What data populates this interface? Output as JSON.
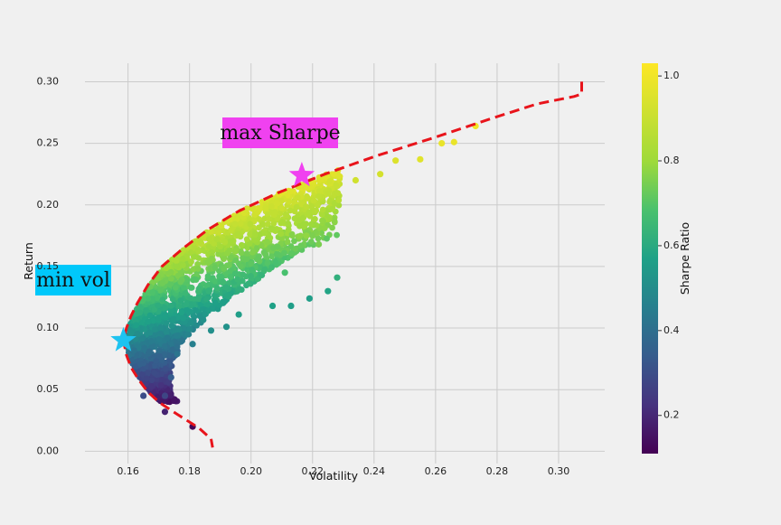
{
  "chart_data": {
    "type": "scatter",
    "title": "",
    "xlabel": "Volatility",
    "ylabel": "Return",
    "colorbar_label": "Sharpe Ratio",
    "xlim": [
      0.146,
      0.315
    ],
    "ylim": [
      -0.01,
      0.315
    ],
    "xticks": [
      "0.16",
      "0.18",
      "0.20",
      "0.22",
      "0.24",
      "0.26",
      "0.28",
      "0.30"
    ],
    "xtick_values": [
      0.16,
      0.18,
      0.2,
      0.22,
      0.24,
      0.26,
      0.28,
      0.3
    ],
    "yticks": [
      "0.00",
      "0.05",
      "0.10",
      "0.15",
      "0.20",
      "0.25",
      "0.30"
    ],
    "ytick_values": [
      0.0,
      0.05,
      0.1,
      0.15,
      0.2,
      0.25,
      0.3
    ],
    "colorbar_ticks": [
      "0.2",
      "0.4",
      "0.6",
      "0.8",
      "1.0"
    ],
    "colorbar_tick_values": [
      0.2,
      0.4,
      0.6,
      0.8,
      1.0
    ],
    "colorbar_range": [
      0.11,
      1.03
    ],
    "colormap": "viridis",
    "grid": true,
    "frontier": {
      "color": "#e8141b",
      "style": "dashed",
      "upper": [
        [
          0.1585,
          0.09
        ],
        [
          0.1595,
          0.1
        ],
        [
          0.161,
          0.11
        ],
        [
          0.163,
          0.12
        ],
        [
          0.1665,
          0.135
        ],
        [
          0.171,
          0.15
        ],
        [
          0.178,
          0.165
        ],
        [
          0.186,
          0.18
        ],
        [
          0.196,
          0.195
        ],
        [
          0.209,
          0.21
        ],
        [
          0.224,
          0.225
        ],
        [
          0.241,
          0.24
        ],
        [
          0.26,
          0.255
        ],
        [
          0.278,
          0.27
        ],
        [
          0.293,
          0.282
        ],
        [
          0.305,
          0.288
        ],
        [
          0.3075,
          0.29
        ],
        [
          0.3075,
          0.3
        ]
      ],
      "lower": [
        [
          0.1585,
          0.09
        ],
        [
          0.1595,
          0.078
        ],
        [
          0.161,
          0.068
        ],
        [
          0.1635,
          0.058
        ],
        [
          0.1665,
          0.048
        ],
        [
          0.1705,
          0.039
        ],
        [
          0.176,
          0.03
        ],
        [
          0.183,
          0.019
        ],
        [
          0.187,
          0.01
        ],
        [
          0.1875,
          0.003
        ]
      ]
    },
    "scatter_samples": [
      {
        "x": 0.181,
        "y": 0.02,
        "sharpe": 0.12
      },
      {
        "x": 0.172,
        "y": 0.032,
        "sharpe": 0.19
      },
      {
        "x": 0.165,
        "y": 0.045,
        "sharpe": 0.3
      },
      {
        "x": 0.255,
        "y": 0.237,
        "sharpe": 0.96
      },
      {
        "x": 0.262,
        "y": 0.25,
        "sharpe": 0.98
      },
      {
        "x": 0.266,
        "y": 0.251,
        "sharpe": 0.98
      },
      {
        "x": 0.273,
        "y": 0.264,
        "sharpe": 1.0
      },
      {
        "x": 0.228,
        "y": 0.141,
        "sharpe": 0.62
      },
      {
        "x": 0.225,
        "y": 0.13,
        "sharpe": 0.58
      },
      {
        "x": 0.219,
        "y": 0.124,
        "sharpe": 0.56
      },
      {
        "x": 0.213,
        "y": 0.118,
        "sharpe": 0.56
      },
      {
        "x": 0.207,
        "y": 0.118,
        "sharpe": 0.57
      },
      {
        "x": 0.196,
        "y": 0.111,
        "sharpe": 0.56
      },
      {
        "x": 0.192,
        "y": 0.101,
        "sharpe": 0.52
      },
      {
        "x": 0.187,
        "y": 0.098,
        "sharpe": 0.51
      },
      {
        "x": 0.181,
        "y": 0.087,
        "sharpe": 0.46
      },
      {
        "x": 0.176,
        "y": 0.079,
        "sharpe": 0.42
      },
      {
        "x": 0.172,
        "y": 0.045,
        "sharpe": 0.28
      },
      {
        "x": 0.174,
        "y": 0.06,
        "sharpe": 0.34
      },
      {
        "x": 0.242,
        "y": 0.225,
        "sharpe": 0.93
      },
      {
        "x": 0.234,
        "y": 0.22,
        "sharpe": 0.92
      },
      {
        "x": 0.247,
        "y": 0.236,
        "sharpe": 0.95
      },
      {
        "x": 0.218,
        "y": 0.175,
        "sharpe": 0.78
      },
      {
        "x": 0.222,
        "y": 0.168,
        "sharpe": 0.75
      },
      {
        "x": 0.211,
        "y": 0.145,
        "sharpe": 0.68
      }
    ],
    "markers": [
      {
        "label": "max Sharpe",
        "x": 0.2165,
        "y": 0.224,
        "color": "#f041f0",
        "label_bg": "#f041f0"
      },
      {
        "label": "min vol",
        "x": 0.1585,
        "y": 0.09,
        "color": "#1ec3f0",
        "label_bg": "#00c8fa"
      }
    ]
  }
}
